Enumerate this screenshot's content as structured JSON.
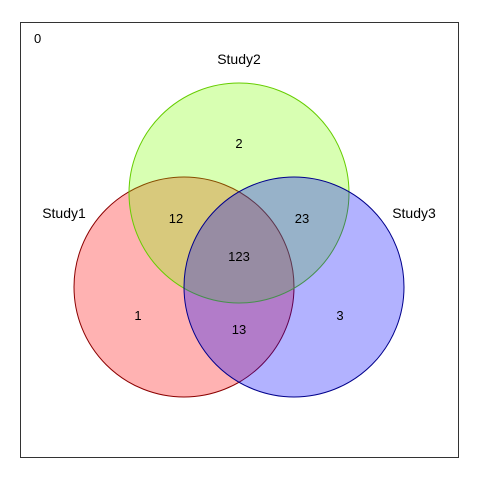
{
  "corner_label": "0",
  "sets": [
    {
      "name": "Study1",
      "fill": "#ff0000",
      "stroke": "#8b0000"
    },
    {
      "name": "Study2",
      "fill": "#7fff00",
      "stroke": "#66cd00"
    },
    {
      "name": "Study3",
      "fill": "#0000ff",
      "stroke": "#00008b"
    }
  ],
  "regions": {
    "only_1": "1",
    "only_2": "2",
    "only_3": "3",
    "r12": "12",
    "r23": "23",
    "r13": "13",
    "r123": "123"
  }
}
